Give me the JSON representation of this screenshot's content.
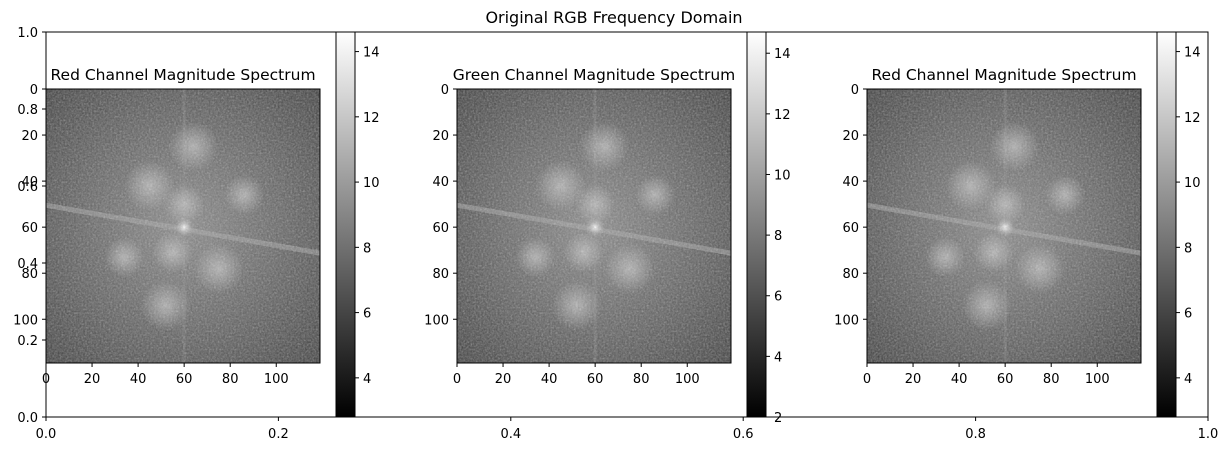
{
  "figure": {
    "suptitle": "Original RGB Frequency Domain"
  },
  "chart_data": [
    {
      "type": "axes",
      "role": "background",
      "title": "",
      "xlim": [
        0.0,
        1.0
      ],
      "ylim": [
        0.0,
        1.0
      ],
      "xticks": [
        "0.0",
        "0.2",
        "0.4",
        "0.6",
        "0.8",
        "1.0"
      ],
      "yticks": [
        "0.0",
        "0.2",
        "0.4",
        "0.6",
        "0.8",
        "1.0"
      ]
    },
    {
      "type": "heatmap",
      "title": "Red Channel Magnitude Spectrum",
      "xticks": [
        "0",
        "20",
        "40",
        "60",
        "80",
        "100"
      ],
      "yticks": [
        "0",
        "20",
        "40",
        "60",
        "80",
        "100"
      ],
      "xlim": [
        0,
        119
      ],
      "ylim": [
        119,
        0
      ],
      "colormap": "gray",
      "colorbar": {
        "min": 2.8,
        "max": 14.6,
        "ticks": [
          "4",
          "6",
          "8",
          "10",
          "12",
          "14"
        ]
      }
    },
    {
      "type": "heatmap",
      "title": "Green Channel Magnitude Spectrum",
      "xticks": [
        "0",
        "20",
        "40",
        "60",
        "80",
        "100"
      ],
      "yticks": [
        "0",
        "20",
        "40",
        "60",
        "80",
        "100"
      ],
      "xlim": [
        0,
        119
      ],
      "ylim": [
        119,
        0
      ],
      "colormap": "gray",
      "colorbar": {
        "min": 2.0,
        "max": 14.7,
        "ticks": [
          "2",
          "4",
          "6",
          "8",
          "10",
          "12",
          "14"
        ]
      }
    },
    {
      "type": "heatmap",
      "title": "Red Channel Magnitude Spectrum",
      "xticks": [
        "0",
        "20",
        "40",
        "60",
        "80",
        "100"
      ],
      "yticks": [
        "0",
        "20",
        "40",
        "60",
        "80",
        "100"
      ],
      "xlim": [
        0,
        119
      ],
      "ylim": [
        119,
        0
      ],
      "colormap": "gray",
      "colorbar": {
        "min": 2.8,
        "max": 14.6,
        "ticks": [
          "4",
          "6",
          "8",
          "10",
          "12",
          "14"
        ]
      }
    }
  ]
}
